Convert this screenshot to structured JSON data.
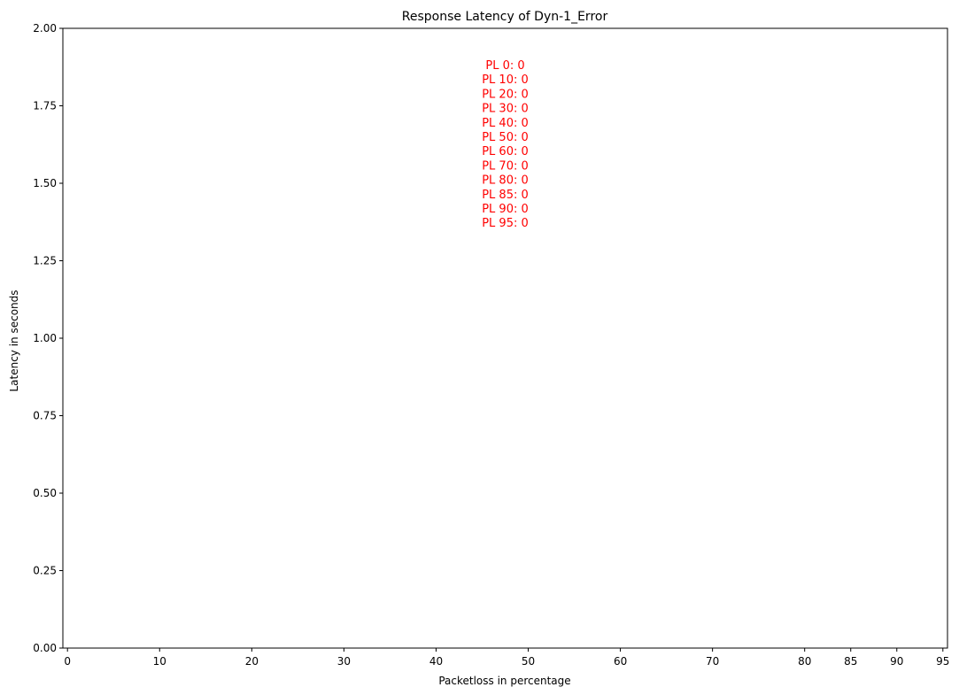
{
  "chart_data": {
    "type": "bar",
    "title": "Response Latency of Dyn-1_Error",
    "xlabel": "Packetloss in percentage",
    "ylabel": "Latency in seconds",
    "xlim": [
      -0.5,
      95.5
    ],
    "ylim": [
      0,
      2
    ],
    "x": [
      0,
      10,
      20,
      30,
      40,
      50,
      60,
      70,
      80,
      85,
      90,
      95
    ],
    "x_tick_labels": [
      "0",
      "10",
      "20",
      "30",
      "40",
      "50",
      "60",
      "70",
      "80",
      "85",
      "90",
      "95"
    ],
    "y_ticks": [
      0,
      0.25,
      0.5,
      0.75,
      1.0,
      1.25,
      1.5,
      1.75,
      2.0
    ],
    "y_tick_labels": [
      "0.00",
      "0.25",
      "0.50",
      "0.75",
      "1.00",
      "1.25",
      "1.50",
      "1.75",
      "2.00"
    ],
    "values": [
      0,
      0,
      0,
      0,
      0,
      0,
      0,
      0,
      0,
      0,
      0,
      0
    ],
    "grid": false,
    "annotation_color": "#ff0000",
    "annotations": [
      "PL 0: 0",
      "PL 10: 0",
      "PL 20: 0",
      "PL 30: 0",
      "PL 40: 0",
      "PL 50: 0",
      "PL 60: 0",
      "PL 70: 0",
      "PL 80: 0",
      "PL 85: 0",
      "PL 90: 0",
      "PL 95: 0"
    ]
  }
}
